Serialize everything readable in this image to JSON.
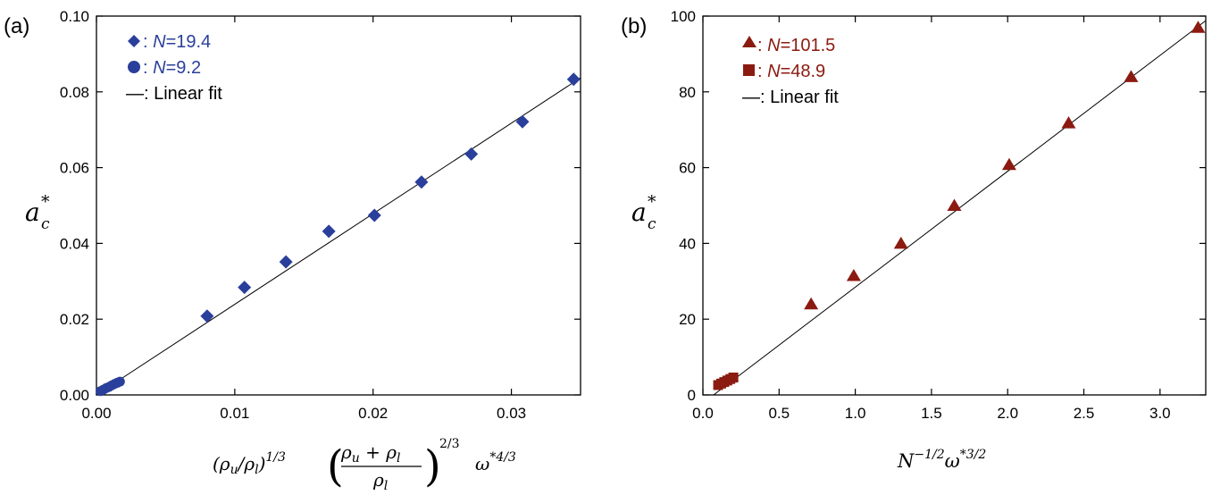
{
  "chart_data": [
    {
      "type": "scatter",
      "panel_label": "(a)",
      "xlim": [
        0,
        0.035
      ],
      "ylim": [
        0,
        0.1
      ],
      "xticks": [
        "0.00",
        "0.01",
        "0.02",
        "0.03"
      ],
      "xtick_values": [
        0,
        0.01,
        0.02,
        0.03
      ],
      "yticks": [
        "0.00",
        "0.02",
        "0.04",
        "0.06",
        "0.08",
        "0.10"
      ],
      "ytick_values": [
        0,
        0.02,
        0.04,
        0.06,
        0.08,
        0.1
      ],
      "ylabel": "a",
      "ylabel_sub": "c",
      "ylabel_sup": "*",
      "xlabel_parts": {
        "p1": "(ρ",
        "s1": "u",
        "p2": "/ρ",
        "s2": "l",
        "p3": ")",
        "e1": "1/3",
        "num_a": "ρ",
        "num_as": "u",
        "num_plus": " + ρ",
        "num_bs": "l",
        "den": "ρ",
        "den_s": "l",
        "e2": "2/3",
        "omega": "ω",
        "e3": "*4/3"
      },
      "series": [
        {
          "name": "N=19.4",
          "legend_prefix": ": ",
          "legend_italic": "N",
          "legend_rest": "=19.4",
          "marker": "diamond",
          "color": "#2a3f9b",
          "x": [
            0.008,
            0.0107,
            0.0137,
            0.0168,
            0.0201,
            0.0235,
            0.0271,
            0.0308,
            0.0345
          ],
          "y": [
            0.0208,
            0.0284,
            0.0351,
            0.0432,
            0.0474,
            0.0562,
            0.0636,
            0.0721,
            0.0833
          ]
        },
        {
          "name": "N=9.2",
          "legend_prefix": ": ",
          "legend_italic": "N",
          "legend_rest": "=9.2",
          "marker": "circle",
          "color": "#2a3f9b",
          "x": [
            0.0003,
            0.0005,
            0.0007,
            0.0009,
            0.0011,
            0.0013,
            0.0015,
            0.0017
          ],
          "y": [
            0.001,
            0.0014,
            0.0018,
            0.0021,
            0.0025,
            0.0029,
            0.0032,
            0.0035
          ]
        }
      ],
      "fit": {
        "legend_label": "—: Linear fit",
        "color": "#000000",
        "x": [
          0,
          0.035
        ],
        "y": [
          0,
          0.0837
        ]
      }
    },
    {
      "type": "scatter",
      "panel_label": "(b)",
      "xlim": [
        0,
        3.3
      ],
      "ylim": [
        0,
        100
      ],
      "xticks": [
        "0.0",
        "0.5",
        "1.0",
        "1.5",
        "2.0",
        "2.5",
        "3.0"
      ],
      "xtick_values": [
        0,
        0.5,
        1.0,
        1.5,
        2.0,
        2.5,
        3.0
      ],
      "yticks": [
        "0",
        "20",
        "40",
        "60",
        "80",
        "100"
      ],
      "ytick_values": [
        0,
        20,
        40,
        60,
        80,
        100
      ],
      "ylabel": "a",
      "ylabel_sub": "c",
      "ylabel_sup": "*",
      "xlabel_parts": {
        "base": "N",
        "e1": "−1/2",
        "omega": "ω",
        "e2": "*3/2"
      },
      "series": [
        {
          "name": "N=101.5",
          "legend_prefix": ": ",
          "legend_italic": "N",
          "legend_rest": "=101.5",
          "marker": "triangle",
          "color": "#8b1a10",
          "x": [
            0.71,
            0.99,
            1.3,
            1.65,
            2.01,
            2.4,
            2.81,
            3.25
          ],
          "y": [
            24.0,
            31.5,
            40.0,
            50.0,
            60.8,
            71.8,
            84.0,
            97.0
          ]
        },
        {
          "name": "N=48.9",
          "legend_prefix": ": ",
          "legend_italic": "N",
          "legend_rest": "=48.9",
          "marker": "square",
          "color": "#8b1a10",
          "x": [
            0.1,
            0.12,
            0.14,
            0.16,
            0.18,
            0.2
          ],
          "y": [
            2.6,
            3.0,
            3.4,
            3.8,
            4.2,
            4.6
          ]
        }
      ],
      "fit": {
        "legend_label": "—: Linear fit",
        "color": "#000000",
        "x": [
          0.07,
          3.3
        ],
        "y": [
          0,
          98.8
        ]
      }
    }
  ]
}
